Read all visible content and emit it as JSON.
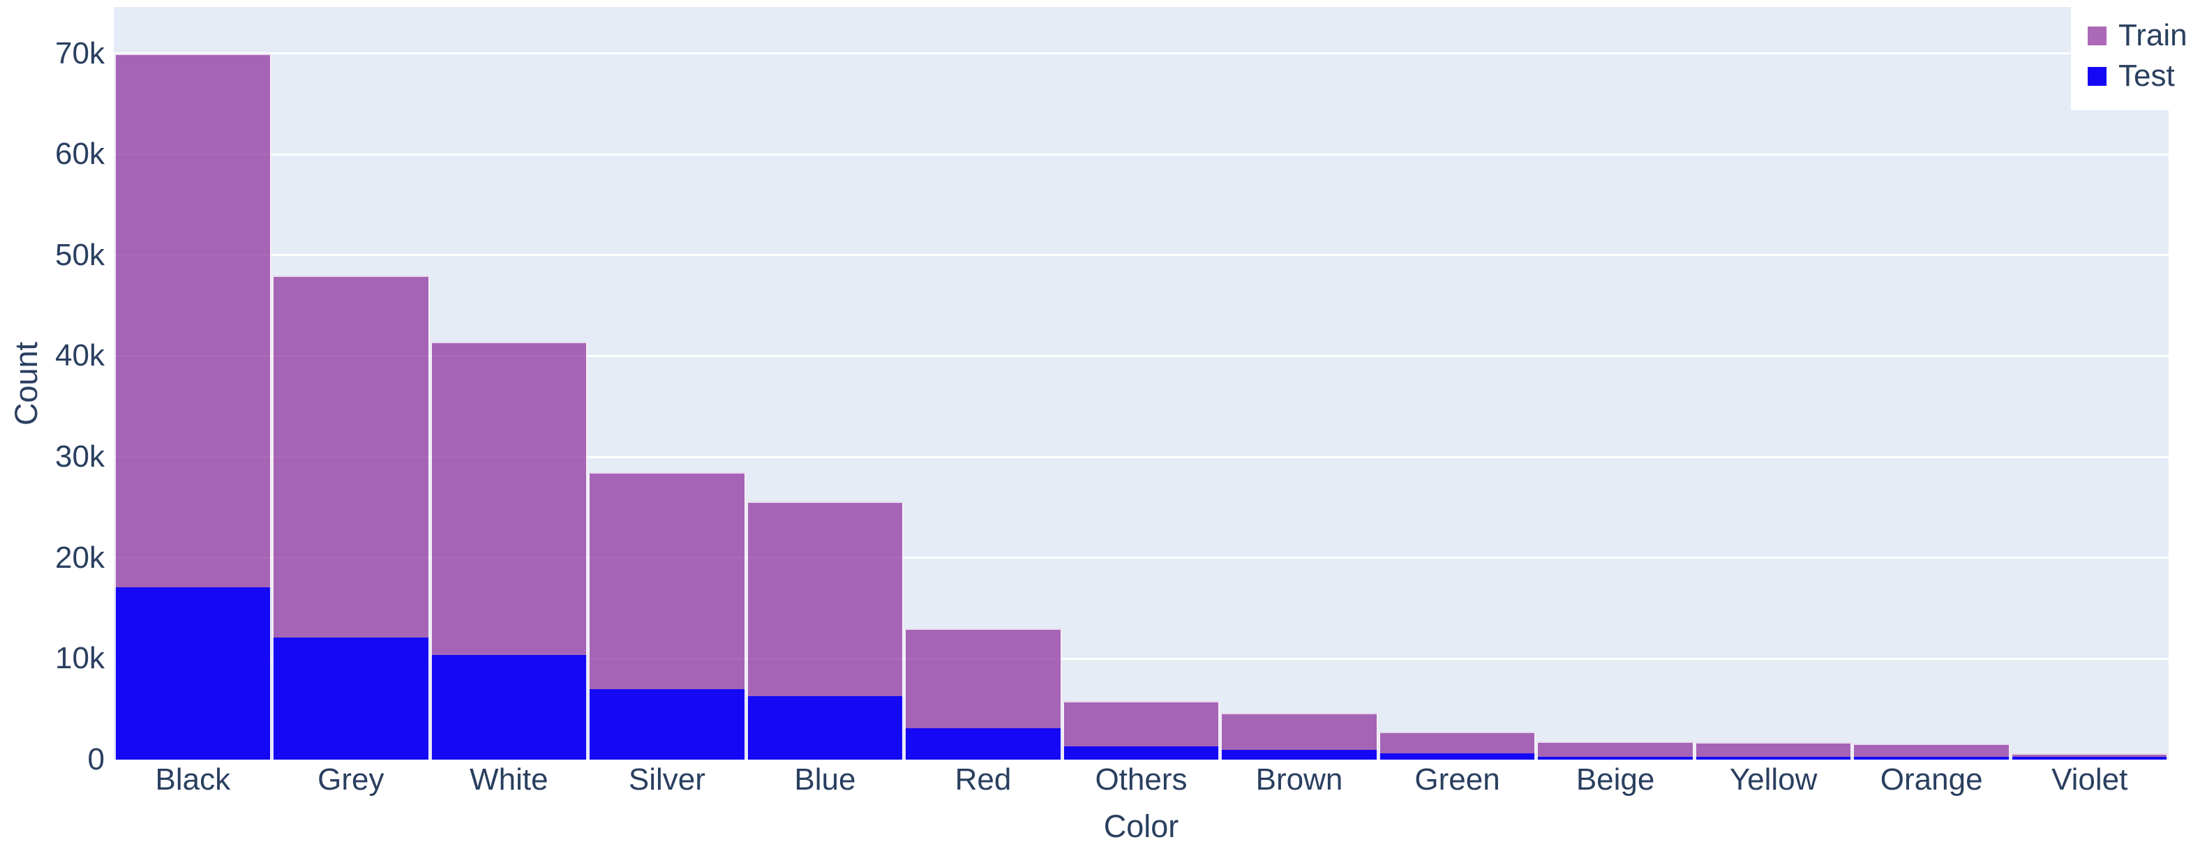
{
  "colors": {
    "paper_background": "#ffffff",
    "plot_background": "#e5ecf6",
    "gridline": "#ffffff",
    "text": "#2a3f5f",
    "train_bar": "rgba(140,47,157,0.72)",
    "train_bar_blended_hex": "#a563b5",
    "test_bar": "#1408f5"
  },
  "legend": {
    "position": "top-right",
    "items": [
      {
        "label": "Train",
        "swatch_color": "rgba(140,47,157,0.72)"
      },
      {
        "label": "Test",
        "swatch_color": "#1408f5"
      }
    ]
  },
  "chart_data": {
    "type": "bar",
    "mode": "overlay",
    "title": "",
    "xlabel": "Color",
    "ylabel": "Count",
    "categories": [
      "Black",
      "Grey",
      "White",
      "Silver",
      "Blue",
      "Red",
      "Others",
      "Brown",
      "Green",
      "Beige",
      "Yellow",
      "Orange",
      "Violet"
    ],
    "series": [
      {
        "name": "Train",
        "color": "rgba(140,47,157,0.72)",
        "values": [
          70000,
          48000,
          41400,
          28500,
          25600,
          13000,
          5800,
          4600,
          2800,
          1800,
          1700,
          1600,
          600
        ]
      },
      {
        "name": "Test",
        "color": "#1408f5",
        "values": [
          17100,
          12100,
          10400,
          7000,
          6300,
          3100,
          1300,
          1000,
          650,
          300,
          280,
          260,
          250
        ]
      }
    ],
    "ylim": [
      0,
      74600
    ],
    "yticks": [
      {
        "value": 0,
        "label": "0"
      },
      {
        "value": 10000,
        "label": "10k"
      },
      {
        "value": 20000,
        "label": "20k"
      },
      {
        "value": 30000,
        "label": "30k"
      },
      {
        "value": 40000,
        "label": "40k"
      },
      {
        "value": 50000,
        "label": "50k"
      },
      {
        "value": 60000,
        "label": "60k"
      },
      {
        "value": 70000,
        "label": "70k"
      }
    ],
    "grid": true,
    "legend_position": "top-right"
  }
}
